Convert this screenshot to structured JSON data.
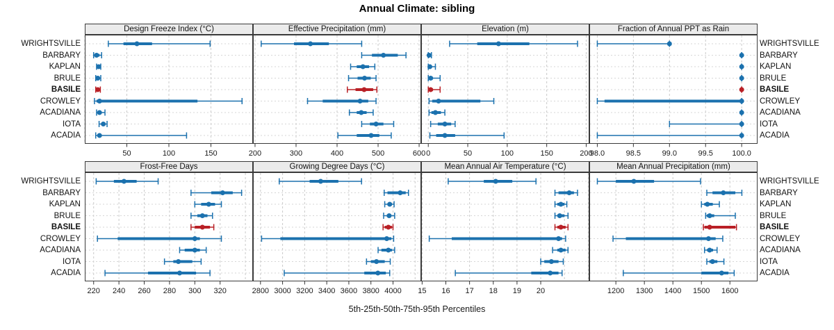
{
  "title": "Annual Climate: sibling",
  "caption": "5th-25th-50th-75th-95th Percentiles",
  "stations": [
    "WRIGHTSVILLE",
    "BARBARY",
    "KAPLAN",
    "BRULE",
    "BASILE",
    "CROWLEY",
    "ACADIANA",
    "IOTA",
    "ACADIA"
  ],
  "highlight_station": "BASILE",
  "percentiles": [
    "5th",
    "25th",
    "50th",
    "75th",
    "95th"
  ],
  "colors": {
    "series": "#1b71ae",
    "highlight": "#b92026",
    "header_bg": "#ebebeb",
    "panel_border": "#3a3a3a",
    "grid_vertical": "#c9c9c9",
    "grid_horizontal": "#d6d6d6"
  },
  "chart_data": [
    {
      "type": "dotplot",
      "title": "Design Freeze Index (°C)",
      "xlim": [
        0,
        200
      ],
      "ticks": [
        50,
        100,
        150
      ],
      "tick_labels": [
        "50",
        "100",
        "150"
      ],
      "grid_ticks": [
        0,
        50,
        100,
        150,
        200
      ],
      "series": [
        [
          28,
          46,
          62,
          80,
          149
        ],
        [
          10.5,
          12,
          14,
          17.5,
          20
        ],
        [
          14,
          15,
          16.5,
          18,
          19
        ],
        [
          13,
          14.5,
          15.5,
          17.5,
          19
        ],
        [
          13,
          14,
          15.5,
          17,
          18.5
        ],
        [
          11.5,
          14,
          17.5,
          134,
          187
        ],
        [
          14,
          15.5,
          17.5,
          20,
          24
        ],
        [
          17,
          20,
          22,
          24.5,
          26.5
        ],
        [
          13,
          15,
          17.5,
          20,
          121
        ]
      ]
    },
    {
      "type": "dotplot",
      "title": "Effective Precipitation (mm)",
      "xlim": [
        195,
        605
      ],
      "ticks": [
        200,
        300,
        400,
        500,
        600
      ],
      "tick_labels": [
        "200",
        "300",
        "400",
        "500",
        "600"
      ],
      "grid_ticks": [
        200,
        300,
        400,
        500,
        600
      ],
      "series": [
        [
          215,
          295,
          335,
          380,
          460
        ],
        [
          460,
          485,
          513,
          548,
          568
        ],
        [
          433,
          448,
          463,
          478,
          492
        ],
        [
          428,
          450,
          467,
          482,
          495
        ],
        [
          425,
          445,
          466,
          488,
          497
        ],
        [
          328,
          365,
          456,
          476,
          495
        ],
        [
          430,
          448,
          459,
          472,
          488
        ],
        [
          460,
          480,
          495,
          513,
          538
        ],
        [
          402,
          448,
          483,
          503,
          532
        ]
      ]
    },
    {
      "type": "dotplot",
      "title": "Elevation (m)",
      "xlim": [
        -9,
        204
      ],
      "ticks": [
        0,
        50,
        100,
        150,
        200
      ],
      "tick_labels": [
        "0",
        "50",
        "100",
        "150",
        "200"
      ],
      "grid_ticks": [
        0,
        50,
        100,
        150,
        200
      ],
      "series": [
        [
          27,
          62,
          89,
          128,
          189
        ],
        [
          0,
          0.5,
          1,
          2,
          4
        ],
        [
          0,
          1,
          2,
          4,
          9
        ],
        [
          0,
          2,
          3,
          6,
          15
        ],
        [
          0,
          1,
          3,
          6,
          15
        ],
        [
          1,
          5,
          13,
          66,
          83
        ],
        [
          1,
          4,
          9,
          16,
          21
        ],
        [
          3,
          12,
          21,
          29,
          34
        ],
        [
          2,
          10,
          21,
          34,
          96
        ]
      ]
    },
    {
      "type": "dotplot",
      "title": "Fraction of Annual PPT as Rain",
      "xlim": [
        97.89,
        100.22
      ],
      "ticks": [
        98.0,
        98.5,
        99.0,
        99.5,
        100.0
      ],
      "tick_labels": [
        "98.0",
        "98.5",
        "99.0",
        "99.5",
        "100.0"
      ],
      "grid_ticks": [
        98.0,
        98.5,
        99.0,
        99.5,
        100.0
      ],
      "series": [
        [
          98.0,
          99.0,
          99.0,
          99.0,
          99.0
        ],
        [
          100,
          100,
          100,
          100,
          100
        ],
        [
          100,
          100,
          100,
          100,
          100
        ],
        [
          100,
          100,
          100,
          100,
          100
        ],
        [
          100,
          100,
          100,
          100,
          100
        ],
        [
          98.0,
          98.1,
          100,
          100,
          100
        ],
        [
          100,
          100,
          100,
          100,
          100
        ],
        [
          99.0,
          100,
          100,
          100,
          100
        ],
        [
          98.0,
          100,
          100,
          100,
          100
        ]
      ]
    },
    {
      "type": "dotplot",
      "title": "Frost-Free Days",
      "xlim": [
        213,
        346
      ],
      "ticks": [
        220,
        240,
        260,
        280,
        300,
        320
      ],
      "tick_labels": [
        "220",
        "240",
        "260",
        "280",
        "300",
        "320"
      ],
      "grid_ticks": [
        220,
        240,
        260,
        280,
        300,
        320,
        340
      ],
      "series": [
        [
          222,
          236,
          244,
          254,
          271
        ],
        [
          297,
          313,
          322,
          330,
          337
        ],
        [
          300,
          305,
          311,
          316,
          321
        ],
        [
          297,
          302,
          306,
          310,
          314
        ],
        [
          297,
          300,
          306,
          312,
          315
        ],
        [
          223,
          239,
          300,
          304,
          321
        ],
        [
          288,
          292,
          300,
          304,
          309
        ],
        [
          276,
          283,
          287,
          298,
          305
        ],
        [
          229,
          263,
          288,
          301,
          312
        ]
      ]
    },
    {
      "type": "dotplot",
      "title": "Growing Degree Days (°C)",
      "xlim": [
        2732,
        4255
      ],
      "ticks": [
        2800,
        3000,
        3200,
        3400,
        3600,
        3800,
        4000
      ],
      "tick_labels": [
        "2800",
        "3000",
        "3200",
        "3400",
        "3600",
        "3800",
        "4000"
      ],
      "grid_ticks": [
        2800,
        3000,
        3200,
        3400,
        3600,
        3800,
        4000,
        4200
      ],
      "series": [
        [
          2970,
          3245,
          3345,
          3505,
          3715
        ],
        [
          3920,
          3950,
          4065,
          4115,
          4140
        ],
        [
          3925,
          3950,
          3970,
          3990,
          4010
        ],
        [
          3915,
          3945,
          3965,
          3985,
          4015
        ],
        [
          3910,
          3925,
          3958,
          3990,
          4000
        ],
        [
          2810,
          2980,
          3943,
          3985,
          4006
        ],
        [
          3865,
          3895,
          3958,
          3990,
          4015
        ],
        [
          3760,
          3800,
          3850,
          3925,
          3975
        ],
        [
          3015,
          3740,
          3863,
          3935,
          3970
        ]
      ]
    },
    {
      "type": "dotplot",
      "title": "Mean Annual Air Temperature (°C)",
      "xlim": [
        14.96,
        22.05
      ],
      "ticks": [
        15,
        16,
        17,
        18,
        19,
        20
      ],
      "tick_labels": [
        "15",
        "16",
        "17",
        "18",
        "19",
        "20"
      ],
      "grid_ticks": [
        15,
        16,
        17,
        18,
        19,
        20,
        21,
        22
      ],
      "series": [
        [
          16.1,
          17.6,
          18.1,
          18.8,
          19.8
        ],
        [
          20.6,
          20.75,
          21.2,
          21.4,
          21.55
        ],
        [
          20.6,
          20.7,
          20.85,
          21.0,
          21.1
        ],
        [
          20.6,
          20.7,
          20.8,
          21.0,
          21.15
        ],
        [
          20.6,
          20.7,
          20.85,
          21.05,
          21.15
        ],
        [
          15.3,
          16.25,
          20.75,
          20.9,
          21.05
        ],
        [
          20.5,
          20.7,
          20.85,
          21.05,
          21.15
        ],
        [
          20.0,
          20.15,
          20.45,
          20.75,
          20.95
        ],
        [
          16.4,
          19.6,
          20.4,
          20.75,
          20.9
        ]
      ]
    },
    {
      "type": "dotplot",
      "title": "Mean Annual Precipitation (mm)",
      "xlim": [
        1107,
        1697
      ],
      "ticks": [
        1200,
        1300,
        1400,
        1500,
        1600
      ],
      "tick_labels": [
        "1200",
        "1300",
        "1400",
        "1500",
        "1600"
      ],
      "grid_ticks": [
        1200,
        1300,
        1400,
        1500,
        1600
      ],
      "series": [
        [
          1135,
          1200,
          1263,
          1334,
          1497
        ],
        [
          1519,
          1539,
          1577,
          1619,
          1642
        ],
        [
          1500,
          1510,
          1521,
          1540,
          1563
        ],
        [
          1515,
          1519,
          1529,
          1545,
          1619
        ],
        [
          1507,
          1511,
          1529,
          1619,
          1623
        ],
        [
          1190,
          1235,
          1525,
          1550,
          1575
        ],
        [
          1511,
          1520,
          1529,
          1541,
          1555
        ],
        [
          1519,
          1528,
          1539,
          1556,
          1579
        ],
        [
          1226,
          1500,
          1571,
          1595,
          1615
        ]
      ]
    }
  ]
}
